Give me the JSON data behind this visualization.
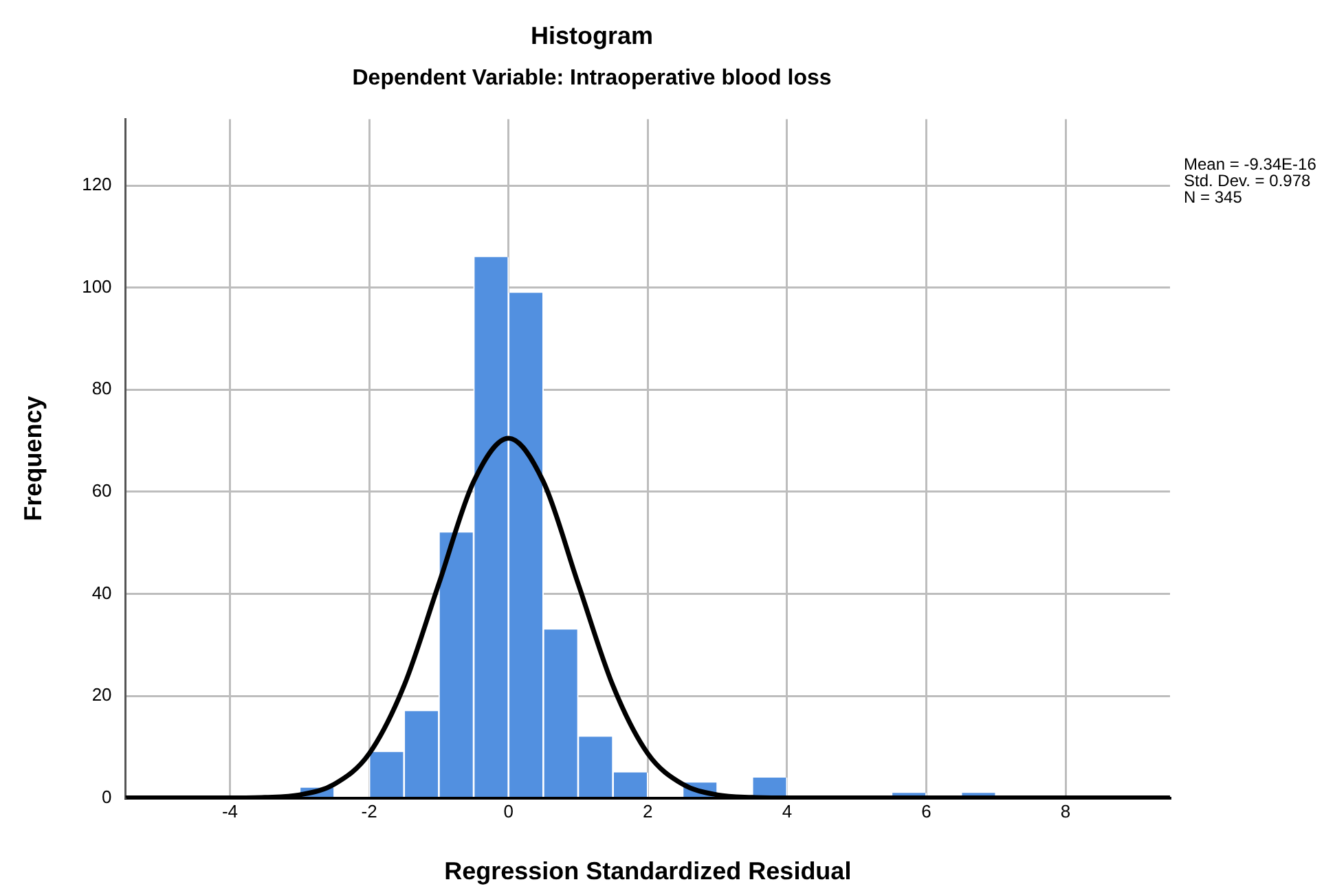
{
  "chart_data": {
    "type": "histogram",
    "title": "Histogram",
    "subtitle": "Dependent Variable: Intraoperative blood loss",
    "xlabel": "Regression Standardized Residual",
    "ylabel": "Frequency",
    "bins": [
      -5.5,
      -5,
      -4.5,
      -4,
      -3.5,
      -3,
      -2.5,
      -2,
      -1.5,
      -1,
      -0.5,
      0,
      0.5,
      1,
      1.5,
      2,
      2.5,
      3,
      3.5,
      4,
      4.5,
      5,
      5.5,
      6,
      6.5,
      7,
      7.5,
      8,
      8.5,
      9,
      9.5
    ],
    "values": [
      0,
      0,
      0,
      0,
      0,
      2,
      0,
      9,
      17,
      52,
      106,
      99,
      33,
      12,
      5,
      0,
      3,
      0,
      4,
      0,
      0,
      0,
      1,
      0,
      1,
      0,
      0,
      0,
      0,
      0
    ],
    "color": "#5290e0",
    "series": [
      {
        "type": "line",
        "color": "#000000",
        "x": [
          -5.5,
          -4.5,
          -4,
          -3.5,
          -3,
          -2.5,
          -2,
          -1.5,
          -1,
          -0.5,
          0,
          0.5,
          1,
          1.5,
          2,
          2.5,
          3,
          3.5,
          4,
          4.5,
          5.5,
          7,
          9.5
        ],
        "values": [
          0,
          0,
          0,
          0.1,
          0.6,
          2.7,
          8.7,
          22,
          42,
          62,
          70.5,
          62,
          42,
          22,
          8.7,
          2.7,
          0.6,
          0.1,
          0,
          0,
          0,
          0,
          0
        ]
      }
    ],
    "xlim": [
      -5.5,
      9.5
    ],
    "xticks": [
      -4,
      -2,
      0,
      2,
      4,
      6,
      8
    ],
    "ylim": [
      0,
      133
    ],
    "yticks": [
      0,
      20,
      40,
      60,
      80,
      100,
      120
    ],
    "grid": true,
    "legend": false,
    "marker": "none",
    "line_style": "solid",
    "annotations": [
      "Mean = -9.34E-16",
      "Std. Dev. = 0.978",
      "N = 345"
    ]
  }
}
